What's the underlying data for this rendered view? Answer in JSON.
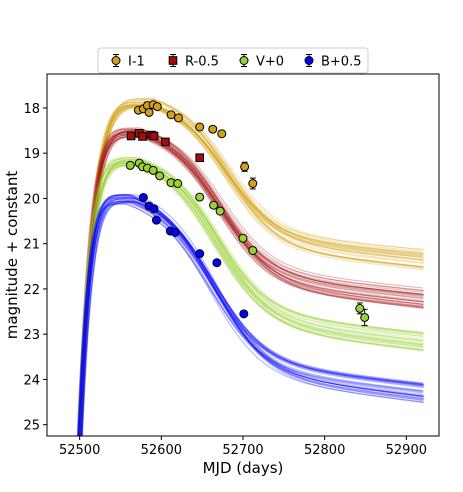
{
  "chart_data": {
    "type": "line",
    "xlabel": "MJD (days)",
    "ylabel": "magnitude + constant",
    "xlim": [
      52460,
      52940
    ],
    "ylim": [
      25.25,
      17.25
    ],
    "y_inverted": true,
    "grid": false,
    "legend_position": "top",
    "xticks": [
      "52500",
      "52600",
      "52700",
      "52800",
      "52900"
    ],
    "yticks": [
      "18",
      "19",
      "20",
      "21",
      "22",
      "23",
      "24",
      "25"
    ],
    "series": [
      {
        "name": "I-1",
        "color": "#d4a017",
        "marker": "circle",
        "points": [
          [
            52572,
            18.05,
            0.05
          ],
          [
            52578,
            18.02,
            0.05
          ],
          [
            52583,
            17.95,
            0.08
          ],
          [
            52585,
            18.1,
            0.06
          ],
          [
            52590,
            17.93,
            0.05
          ],
          [
            52595,
            17.97,
            0.05
          ],
          [
            52612,
            18.15,
            0.05
          ],
          [
            52621,
            18.22,
            0.05
          ],
          [
            52647,
            18.42,
            0.05
          ],
          [
            52663,
            18.47,
            0.05
          ],
          [
            52674,
            18.57,
            0.05
          ],
          [
            52702,
            19.3,
            0.1
          ],
          [
            52712,
            19.67,
            0.12
          ]
        ],
        "model": {
          "rise_mjd": 52497,
          "peak_mjd": 52587,
          "peak_mag": 17.9,
          "late_mjd": 52920,
          "late_mag": 21.35
        }
      },
      {
        "name": "R-0.5",
        "color": "#a30d0d",
        "marker": "square",
        "points": [
          [
            52563,
            18.62,
            0.06
          ],
          [
            52573,
            18.56,
            0.08
          ],
          [
            52577,
            18.63,
            0.06
          ],
          [
            52588,
            18.6,
            0.06
          ],
          [
            52591,
            18.62,
            0.05
          ],
          [
            52605,
            18.75,
            0.06
          ],
          [
            52647,
            19.1,
            0.08
          ]
        ],
        "model": {
          "rise_mjd": 52496,
          "peak_mjd": 52575,
          "peak_mag": 18.55,
          "late_mjd": 52920,
          "late_mag": 22.2
        }
      },
      {
        "name": "V+0",
        "color": "#96d233",
        "marker": "circle",
        "points": [
          [
            52562,
            19.27,
            0.05
          ],
          [
            52573,
            19.22,
            0.05
          ],
          [
            52577,
            19.3,
            0.05
          ],
          [
            52583,
            19.33,
            0.05
          ],
          [
            52590,
            19.38,
            0.05
          ],
          [
            52598,
            19.5,
            0.05
          ],
          [
            52612,
            19.65,
            0.05
          ],
          [
            52620,
            19.67,
            0.05
          ],
          [
            52647,
            19.97,
            0.05
          ],
          [
            52664,
            20.15,
            0.05
          ],
          [
            52672,
            20.28,
            0.05
          ],
          [
            52700,
            20.88,
            0.06
          ],
          [
            52712,
            21.15,
            0.07
          ],
          [
            52843,
            22.43,
            0.12
          ],
          [
            52849,
            22.63,
            0.18
          ]
        ],
        "model": {
          "rise_mjd": 52494,
          "peak_mjd": 52570,
          "peak_mag": 19.2,
          "late_mjd": 52920,
          "late_mag": 23.15
        }
      },
      {
        "name": "B+0.5",
        "color": "#0000ff",
        "marker": "circle",
        "points": [
          [
            52578,
            19.98,
            0.05
          ],
          [
            52585,
            20.17,
            0.05
          ],
          [
            52591,
            20.23,
            0.05
          ],
          [
            52594,
            20.48,
            0.06
          ],
          [
            52611,
            20.72,
            0.05
          ],
          [
            52617,
            20.75,
            0.05
          ],
          [
            52647,
            21.22,
            0.05
          ],
          [
            52668,
            21.42,
            0.05
          ],
          [
            52701,
            22.55,
            0.05
          ]
        ],
        "model": {
          "rise_mjd": 52493,
          "peak_mjd": 52563,
          "peak_mag": 20.02,
          "late_mjd": 52920,
          "late_mag": 24.3
        }
      }
    ]
  }
}
